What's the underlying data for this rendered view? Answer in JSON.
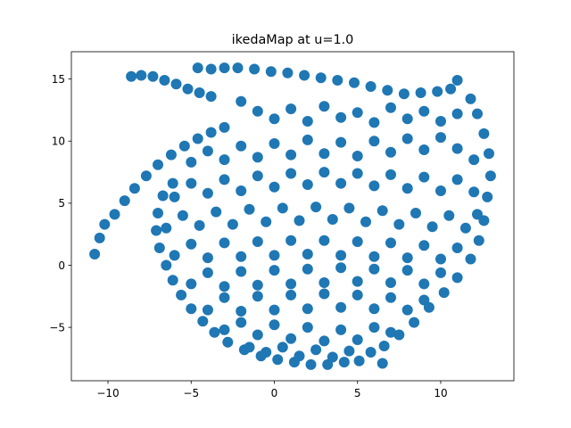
{
  "chart_data": {
    "type": "scatter",
    "title": "ikedaMap at u=1.0",
    "xlabel": "",
    "ylabel": "",
    "xlim": [
      -12.2,
      14.4
    ],
    "ylim": [
      -9.3,
      17.2
    ],
    "xticks": [
      -10,
      -5,
      0,
      5,
      10
    ],
    "yticks": [
      -5,
      0,
      5,
      10,
      15
    ],
    "grid": false,
    "legend": "none",
    "marker_color": "#1f77b4",
    "series": [
      {
        "points": [
          [
            -10.8,
            0.9
          ],
          [
            -10.5,
            2.2
          ],
          [
            -10.2,
            3.3
          ],
          [
            -9.6,
            4.1
          ],
          [
            -9.0,
            5.2
          ],
          [
            -8.4,
            6.2
          ],
          [
            -7.7,
            7.2
          ],
          [
            -7.0,
            8.1
          ],
          [
            -6.2,
            8.9
          ],
          [
            -5.4,
            9.6
          ],
          [
            -4.6,
            10.2
          ],
          [
            -3.8,
            10.7
          ],
          [
            -3.0,
            11.1
          ],
          [
            -8.6,
            15.2
          ],
          [
            -8.0,
            15.3
          ],
          [
            -7.3,
            15.2
          ],
          [
            -6.6,
            14.9
          ],
          [
            -5.9,
            14.6
          ],
          [
            -5.2,
            14.2
          ],
          [
            -4.5,
            13.9
          ],
          [
            -3.8,
            13.6
          ],
          [
            -4.6,
            15.9
          ],
          [
            -3.8,
            15.8
          ],
          [
            -3.0,
            15.9
          ],
          [
            -2.2,
            15.9
          ],
          [
            -1.2,
            15.8
          ],
          [
            -0.2,
            15.6
          ],
          [
            0.8,
            15.5
          ],
          [
            1.8,
            15.3
          ],
          [
            2.8,
            15.1
          ],
          [
            3.8,
            14.9
          ],
          [
            4.8,
            14.7
          ],
          [
            5.8,
            14.4
          ],
          [
            6.8,
            14.1
          ],
          [
            7.8,
            13.8
          ],
          [
            8.8,
            13.9
          ],
          [
            9.8,
            14.0
          ],
          [
            10.6,
            14.2
          ],
          [
            11.0,
            14.9
          ],
          [
            11.8,
            13.4
          ],
          [
            12.2,
            12.2
          ],
          [
            12.6,
            10.6
          ],
          [
            12.9,
            9.0
          ],
          [
            13.0,
            7.2
          ],
          [
            12.8,
            5.5
          ],
          [
            12.6,
            3.6
          ],
          [
            12.3,
            2.0
          ],
          [
            11.8,
            0.5
          ],
          [
            11.0,
            -1.0
          ],
          [
            10.2,
            -2.2
          ],
          [
            9.3,
            -3.4
          ],
          [
            8.4,
            -4.6
          ],
          [
            7.5,
            -5.6
          ],
          [
            6.6,
            -6.5
          ],
          [
            5.8,
            -7.0
          ],
          [
            5.1,
            -7.7
          ],
          [
            6.5,
            -7.9
          ],
          [
            4.2,
            -7.8
          ],
          [
            3.2,
            -8.0
          ],
          [
            2.2,
            -8.0
          ],
          [
            1.2,
            -7.8
          ],
          [
            0.2,
            -7.6
          ],
          [
            -0.8,
            -7.3
          ],
          [
            -1.8,
            -6.8
          ],
          [
            -2.8,
            -6.2
          ],
          [
            -3.6,
            -5.4
          ],
          [
            -4.3,
            -4.5
          ],
          [
            -5.0,
            -3.5
          ],
          [
            -5.6,
            -2.4
          ],
          [
            -6.1,
            -1.2
          ],
          [
            -6.5,
            0.0
          ],
          [
            -6.9,
            1.4
          ],
          [
            -7.1,
            2.8
          ],
          [
            -7.0,
            4.2
          ],
          [
            -6.7,
            5.6
          ],
          [
            -6.1,
            6.6
          ],
          [
            -2.0,
            13.2
          ],
          [
            -1.0,
            12.4
          ],
          [
            0.0,
            11.8
          ],
          [
            1.0,
            12.6
          ],
          [
            2.0,
            11.6
          ],
          [
            3.0,
            12.8
          ],
          [
            4.0,
            11.9
          ],
          [
            5.0,
            12.3
          ],
          [
            6.0,
            11.5
          ],
          [
            7.0,
            12.7
          ],
          [
            8.0,
            11.8
          ],
          [
            9.0,
            12.4
          ],
          [
            10.0,
            11.6
          ],
          [
            11.0,
            12.2
          ],
          [
            -5.0,
            8.3
          ],
          [
            -4.0,
            9.2
          ],
          [
            -3.0,
            8.5
          ],
          [
            -2.0,
            9.6
          ],
          [
            -1.0,
            8.7
          ],
          [
            0.0,
            9.8
          ],
          [
            1.0,
            8.9
          ],
          [
            2.0,
            10.1
          ],
          [
            3.0,
            9.0
          ],
          [
            4.0,
            9.9
          ],
          [
            5.0,
            8.8
          ],
          [
            6.0,
            10.0
          ],
          [
            7.0,
            9.1
          ],
          [
            8.0,
            10.2
          ],
          [
            9.0,
            9.3
          ],
          [
            10.0,
            10.3
          ],
          [
            11.0,
            9.4
          ],
          [
            12.0,
            8.5
          ],
          [
            -6.0,
            5.5
          ],
          [
            -5.0,
            6.6
          ],
          [
            -4.0,
            5.8
          ],
          [
            -3.0,
            6.9
          ],
          [
            -2.0,
            6.0
          ],
          [
            -1.0,
            7.2
          ],
          [
            0.0,
            6.3
          ],
          [
            1.0,
            7.4
          ],
          [
            2.0,
            6.5
          ],
          [
            3.0,
            7.5
          ],
          [
            4.0,
            6.6
          ],
          [
            5.0,
            7.4
          ],
          [
            6.0,
            6.4
          ],
          [
            7.0,
            7.3
          ],
          [
            8.0,
            6.2
          ],
          [
            9.0,
            7.1
          ],
          [
            10.0,
            6.0
          ],
          [
            11.0,
            6.9
          ],
          [
            12.0,
            5.9
          ],
          [
            -6.5,
            3.0
          ],
          [
            -5.5,
            4.0
          ],
          [
            -4.5,
            3.2
          ],
          [
            -3.5,
            4.3
          ],
          [
            -2.5,
            3.3
          ],
          [
            -1.5,
            4.5
          ],
          [
            -0.5,
            3.5
          ],
          [
            0.5,
            4.6
          ],
          [
            1.5,
            3.6
          ],
          [
            2.5,
            4.7
          ],
          [
            3.5,
            3.7
          ],
          [
            4.5,
            4.6
          ],
          [
            5.5,
            3.5
          ],
          [
            6.5,
            4.4
          ],
          [
            7.5,
            3.3
          ],
          [
            8.5,
            4.2
          ],
          [
            9.5,
            3.1
          ],
          [
            10.5,
            4.0
          ],
          [
            11.5,
            3.0
          ],
          [
            12.2,
            4.1
          ],
          [
            -6.0,
            0.8
          ],
          [
            -5.0,
            1.7
          ],
          [
            -4.0,
            0.6
          ],
          [
            -3.0,
            1.8
          ],
          [
            -2.0,
            0.7
          ],
          [
            -1.0,
            1.9
          ],
          [
            0.0,
            0.8
          ],
          [
            1.0,
            2.0
          ],
          [
            2.0,
            0.9
          ],
          [
            3.0,
            2.0
          ],
          [
            4.0,
            0.8
          ],
          [
            5.0,
            1.9
          ],
          [
            6.0,
            0.7
          ],
          [
            7.0,
            1.8
          ],
          [
            8.0,
            0.6
          ],
          [
            9.0,
            1.6
          ],
          [
            10.0,
            0.5
          ],
          [
            11.0,
            1.4
          ],
          [
            -5.0,
            -1.5
          ],
          [
            -4.0,
            -0.6
          ],
          [
            -3.0,
            -1.7
          ],
          [
            -2.0,
            -0.5
          ],
          [
            -1.0,
            -1.6
          ],
          [
            0.0,
            -0.4
          ],
          [
            1.0,
            -1.5
          ],
          [
            2.0,
            -0.3
          ],
          [
            3.0,
            -1.4
          ],
          [
            4.0,
            -0.2
          ],
          [
            5.0,
            -1.3
          ],
          [
            6.0,
            -0.3
          ],
          [
            7.0,
            -1.4
          ],
          [
            8.0,
            -0.4
          ],
          [
            9.0,
            -1.5
          ],
          [
            10.0,
            -0.6
          ],
          [
            -4.0,
            -3.6
          ],
          [
            -3.0,
            -2.6
          ],
          [
            -2.0,
            -3.7
          ],
          [
            -1.0,
            -2.5
          ],
          [
            0.0,
            -3.6
          ],
          [
            1.0,
            -2.4
          ],
          [
            2.0,
            -3.5
          ],
          [
            3.0,
            -2.3
          ],
          [
            4.0,
            -3.4
          ],
          [
            5.0,
            -2.4
          ],
          [
            6.0,
            -3.5
          ],
          [
            7.0,
            -2.6
          ],
          [
            8.0,
            -3.6
          ],
          [
            9.0,
            -2.8
          ],
          [
            -3.0,
            -5.2
          ],
          [
            -2.0,
            -4.6
          ],
          [
            -1.0,
            -5.6
          ],
          [
            0.0,
            -4.8
          ],
          [
            1.0,
            -5.9
          ],
          [
            2.0,
            -5.0
          ],
          [
            3.0,
            -6.1
          ],
          [
            4.0,
            -5.2
          ],
          [
            5.0,
            -6.0
          ],
          [
            6.0,
            -5.0
          ],
          [
            7.0,
            -5.4
          ],
          [
            -1.5,
            -6.6
          ],
          [
            -0.5,
            -7.0
          ],
          [
            0.5,
            -6.6
          ],
          [
            1.5,
            -7.3
          ],
          [
            2.5,
            -6.8
          ],
          [
            3.5,
            -7.4
          ],
          [
            4.5,
            -6.9
          ]
        ]
      }
    ]
  }
}
